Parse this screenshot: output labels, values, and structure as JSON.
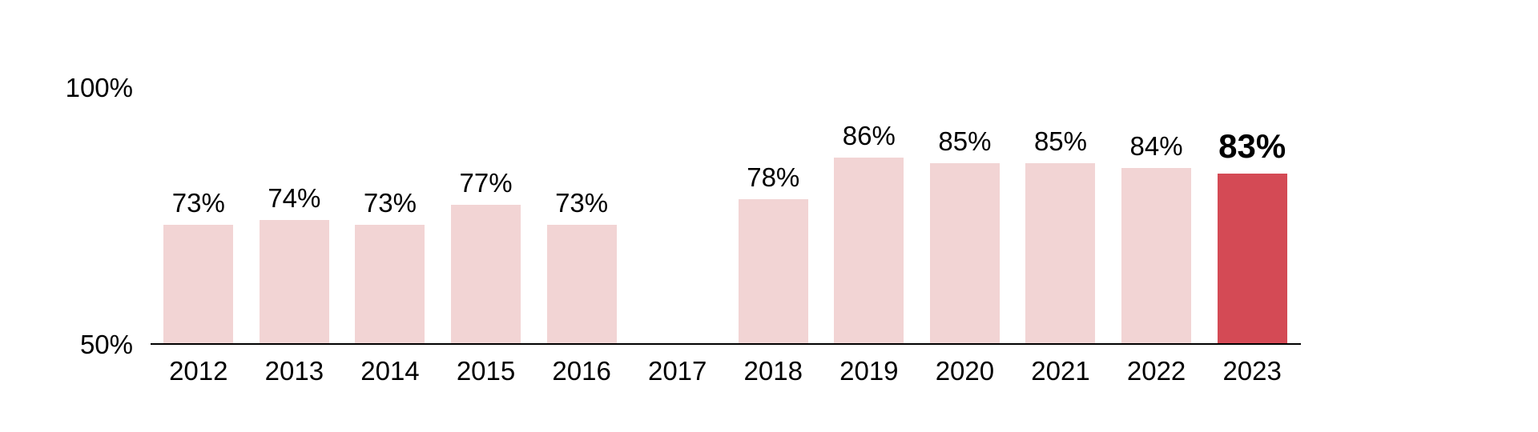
{
  "page": {
    "background": "#ffffff",
    "text_color": "#000000"
  },
  "chart_data": {
    "type": "bar",
    "title": "",
    "xlabel": "",
    "ylabel": "",
    "categories": [
      "2012",
      "2013",
      "2014",
      "2015",
      "2016",
      "2017",
      "2018",
      "2019",
      "2020",
      "2021",
      "2022",
      "2023"
    ],
    "values": [
      73,
      74,
      73,
      77,
      73,
      null,
      78,
      86,
      85,
      85,
      84,
      83
    ],
    "value_labels": [
      "73%",
      "74%",
      "73%",
      "77%",
      "73%",
      "",
      "78%",
      "86%",
      "85%",
      "85%",
      "84%",
      "83%"
    ],
    "ylim": [
      50,
      100
    ],
    "y_axis": {
      "top": "100%",
      "bottom": "50%"
    },
    "grid": "off",
    "legend": "none",
    "highlight_index": 11,
    "highlight_category": "2023",
    "colors": {
      "bar": "#f2d4d4",
      "highlight": "#d44a55",
      "axis": "#000000",
      "text": "#000000"
    }
  }
}
